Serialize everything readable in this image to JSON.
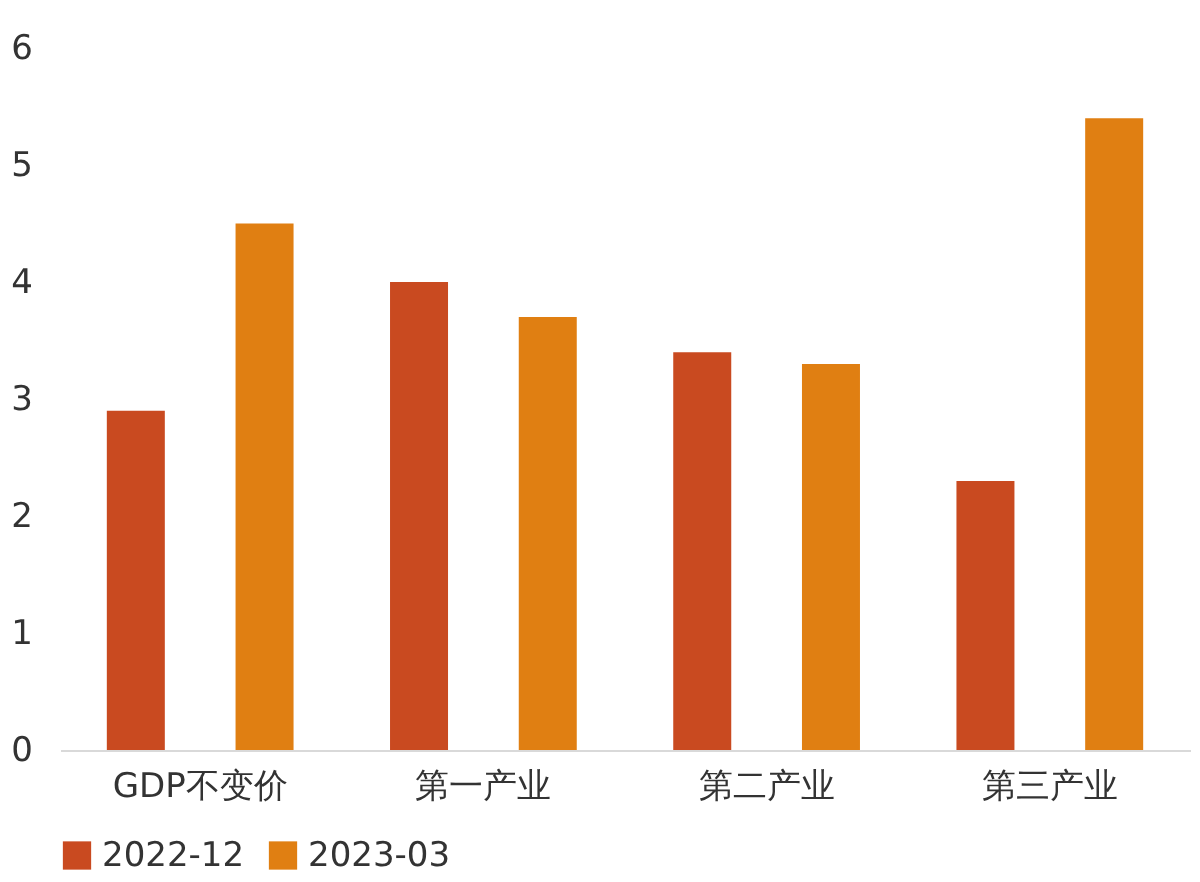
{
  "chart_data": {
    "type": "bar",
    "categories": [
      "GDP不变价",
      "第一产业",
      "第二产业",
      "第三产业"
    ],
    "series": [
      {
        "name": "2022-12",
        "color": "#c94a20",
        "values": [
          2.9,
          4.0,
          3.4,
          2.3
        ]
      },
      {
        "name": "2023-03",
        "color": "#e07f12",
        "values": [
          4.5,
          3.7,
          3.3,
          5.4
        ]
      }
    ],
    "ylim": [
      0,
      6
    ],
    "yticks": [
      0,
      1,
      2,
      3,
      4,
      5,
      6
    ],
    "grid": false,
    "legend": "bottom"
  }
}
